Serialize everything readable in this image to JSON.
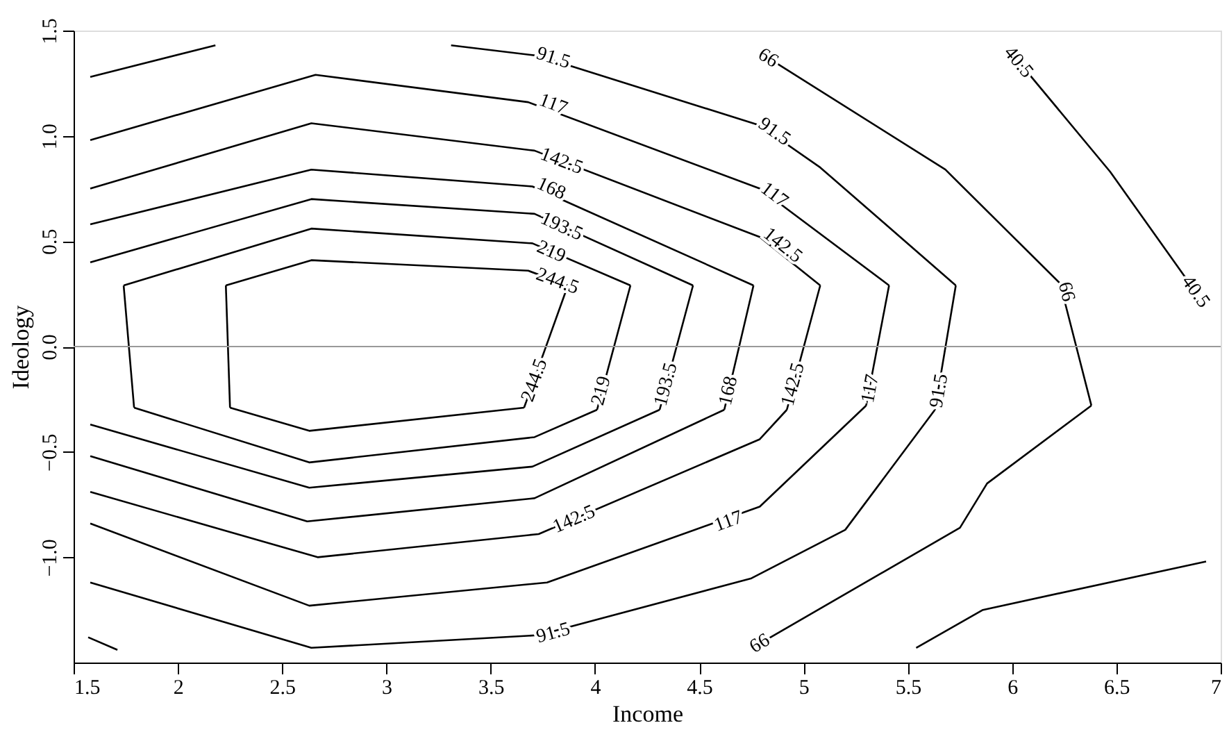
{
  "chart_data": {
    "type": "line",
    "xlabel": "Income",
    "ylabel": "Ideology",
    "xlim": [
      1.5,
      7
    ],
    "ylim": [
      -1.5,
      1.5
    ],
    "xticks": [
      1.5,
      2,
      2.5,
      3,
      3.5,
      4,
      4.5,
      5,
      5.5,
      6,
      6.5,
      7
    ],
    "yticks": [
      {
        "value": -1,
        "label": "−1.0"
      },
      {
        "value": -0.5,
        "label": "−0.5"
      },
      {
        "value": 0,
        "label": "0.0"
      },
      0.5,
      {
        "value": 1,
        "label": "1.0"
      },
      1.5
    ],
    "grid": false,
    "marker": "none",
    "line_style": "solid",
    "ref_lines": [
      {
        "axis": "y",
        "value": 0,
        "color": "#999999"
      }
    ],
    "series": [
      {
        "color": "#000000",
        "x": [
          2.23,
          2.64,
          3.68,
          3.87
        ],
        "values": [
          0.29,
          0.41,
          0.36,
          0.29
        ]
      },
      {
        "color": "#000000",
        "x": [
          3.87,
          3.66
        ],
        "values": [
          0.29,
          -0.29
        ]
      },
      {
        "color": "#000000",
        "x": [
          2.25,
          2.63,
          3.66
        ],
        "values": [
          -0.29,
          -0.4,
          -0.29
        ]
      },
      {
        "color": "#000000",
        "x": [
          2.23,
          2.25
        ],
        "values": [
          0.29,
          -0.29
        ]
      },
      {
        "color": "#000000",
        "x": [
          1.74,
          2.64,
          3.7,
          4.17
        ],
        "values": [
          0.29,
          0.56,
          0.49,
          0.29
        ]
      },
      {
        "color": "#000000",
        "x": [
          4.17,
          4.01
        ],
        "values": [
          0.29,
          -0.3
        ]
      },
      {
        "color": "#000000",
        "x": [
          1.79,
          2.63,
          3.71,
          4.01
        ],
        "values": [
          -0.29,
          -0.55,
          -0.43,
          -0.3
        ]
      },
      {
        "color": "#000000",
        "x": [
          1.74,
          1.79
        ],
        "values": [
          0.29,
          -0.29
        ]
      },
      {
        "color": "#000000",
        "x": [
          1.58,
          2.64,
          3.71,
          4.47
        ],
        "values": [
          0.4,
          0.7,
          0.63,
          0.29
        ]
      },
      {
        "color": "#000000",
        "x": [
          4.47,
          4.31
        ],
        "values": [
          0.29,
          -0.3
        ]
      },
      {
        "color": "#000000",
        "x": [
          1.58,
          2.63,
          3.7,
          4.31
        ],
        "values": [
          -0.37,
          -0.67,
          -0.57,
          -0.3
        ]
      },
      {
        "color": "#000000",
        "x": [
          1.58,
          2.64,
          3.7,
          4.76
        ],
        "values": [
          0.58,
          0.84,
          0.76,
          0.29
        ]
      },
      {
        "color": "#000000",
        "x": [
          4.76,
          4.62
        ],
        "values": [
          0.29,
          -0.3
        ]
      },
      {
        "color": "#000000",
        "x": [
          1.58,
          2.62,
          3.71,
          4.62
        ],
        "values": [
          -0.52,
          -0.83,
          -0.72,
          -0.3
        ]
      },
      {
        "color": "#000000",
        "x": [
          1.58,
          2.64,
          3.71,
          4.79,
          5.08
        ],
        "values": [
          0.75,
          1.06,
          0.93,
          0.52,
          0.29
        ]
      },
      {
        "color": "#000000",
        "x": [
          5.08,
          4.92
        ],
        "values": [
          0.29,
          -0.3
        ]
      },
      {
        "color": "#000000",
        "x": [
          1.58,
          2.67,
          3.73,
          4.79,
          4.92
        ],
        "values": [
          -0.69,
          -1.0,
          -0.89,
          -0.44,
          -0.3
        ]
      },
      {
        "color": "#000000",
        "x": [
          1.58,
          2.66,
          3.68,
          4.79,
          5.41
        ],
        "values": [
          0.98,
          1.29,
          1.16,
          0.75,
          0.29
        ]
      },
      {
        "color": "#000000",
        "x": [
          5.41,
          5.3
        ],
        "values": [
          0.29,
          -0.28
        ]
      },
      {
        "color": "#000000",
        "x": [
          1.58,
          2.63,
          3.77,
          4.79,
          5.3
        ],
        "values": [
          -0.84,
          -1.23,
          -1.12,
          -0.76,
          -0.28
        ]
      },
      {
        "color": "#000000",
        "x": [
          3.31,
          3.73,
          4.79,
          5.08,
          5.73
        ],
        "values": [
          1.43,
          1.38,
          1.05,
          0.85,
          0.29
        ]
      },
      {
        "color": "#000000",
        "x": [
          5.73,
          5.63
        ],
        "values": [
          0.29,
          -0.3
        ]
      },
      {
        "color": "#000000",
        "x": [
          1.58,
          2.64,
          3.73,
          4.75,
          5.2,
          5.63
        ],
        "values": [
          -1.12,
          -1.43,
          -1.37,
          -1.1,
          -0.87,
          -0.3
        ]
      },
      {
        "color": "#000000",
        "x": [
          1.58,
          2.18
        ],
        "values": [
          1.28,
          1.43
        ]
      },
      {
        "color": "#000000",
        "x": [
          1.57,
          1.71
        ],
        "values": [
          -1.38,
          -1.44
        ]
      },
      {
        "color": "#000000",
        "x": [
          4.83,
          5.68,
          6.23,
          6.38
        ],
        "values": [
          1.37,
          0.84,
          0.3,
          -0.28
        ]
      },
      {
        "color": "#000000",
        "x": [
          4.79,
          5.75,
          5.88,
          6.38
        ],
        "values": [
          -1.41,
          -0.86,
          -0.65,
          -0.28
        ]
      },
      {
        "color": "#000000",
        "x": [
          6.0,
          6.47,
          6.88
        ],
        "values": [
          1.39,
          0.83,
          0.26
        ]
      },
      {
        "color": "#000000",
        "x": [
          5.54,
          5.86,
          6.93
        ],
        "values": [
          -1.43,
          -1.25,
          -1.02
        ]
      }
    ],
    "annotations": [
      {
        "text": "91.5",
        "x": 3.8,
        "y": 1.37
      },
      {
        "text": "117",
        "x": 3.8,
        "y": 1.15
      },
      {
        "text": "142.5",
        "x": 3.84,
        "y": 0.88
      },
      {
        "text": "168",
        "x": 3.79,
        "y": 0.75
      },
      {
        "text": "193.5",
        "x": 3.84,
        "y": 0.57
      },
      {
        "text": "219",
        "x": 3.79,
        "y": 0.45
      },
      {
        "text": "244.5",
        "x": 3.82,
        "y": 0.31
      },
      {
        "text": "66",
        "x": 4.83,
        "y": 1.37
      },
      {
        "text": "40.5",
        "x": 6.03,
        "y": 1.35
      },
      {
        "text": "91.5",
        "x": 4.86,
        "y": 1.02
      },
      {
        "text": "117",
        "x": 4.86,
        "y": 0.72
      },
      {
        "text": "142.5",
        "x": 4.9,
        "y": 0.48
      },
      {
        "text": "66",
        "x": 6.26,
        "y": 0.26
      },
      {
        "text": "40.5",
        "x": 6.88,
        "y": 0.26
      },
      {
        "text": "244.5",
        "x": 3.71,
        "y": -0.16
      },
      {
        "text": "219",
        "x": 4.03,
        "y": -0.21
      },
      {
        "text": "193.5",
        "x": 4.34,
        "y": -0.18
      },
      {
        "text": "168",
        "x": 4.64,
        "y": -0.21
      },
      {
        "text": "142.5",
        "x": 4.95,
        "y": -0.18
      },
      {
        "text": "117",
        "x": 5.32,
        "y": -0.2
      },
      {
        "text": "91.5",
        "x": 5.65,
        "y": -0.21
      },
      {
        "text": "142.5",
        "x": 3.9,
        "y": -0.82
      },
      {
        "text": "117",
        "x": 4.64,
        "y": -0.83
      },
      {
        "text": "91.5",
        "x": 3.8,
        "y": -1.36
      },
      {
        "text": "66",
        "x": 4.79,
        "y": -1.41
      }
    ]
  }
}
